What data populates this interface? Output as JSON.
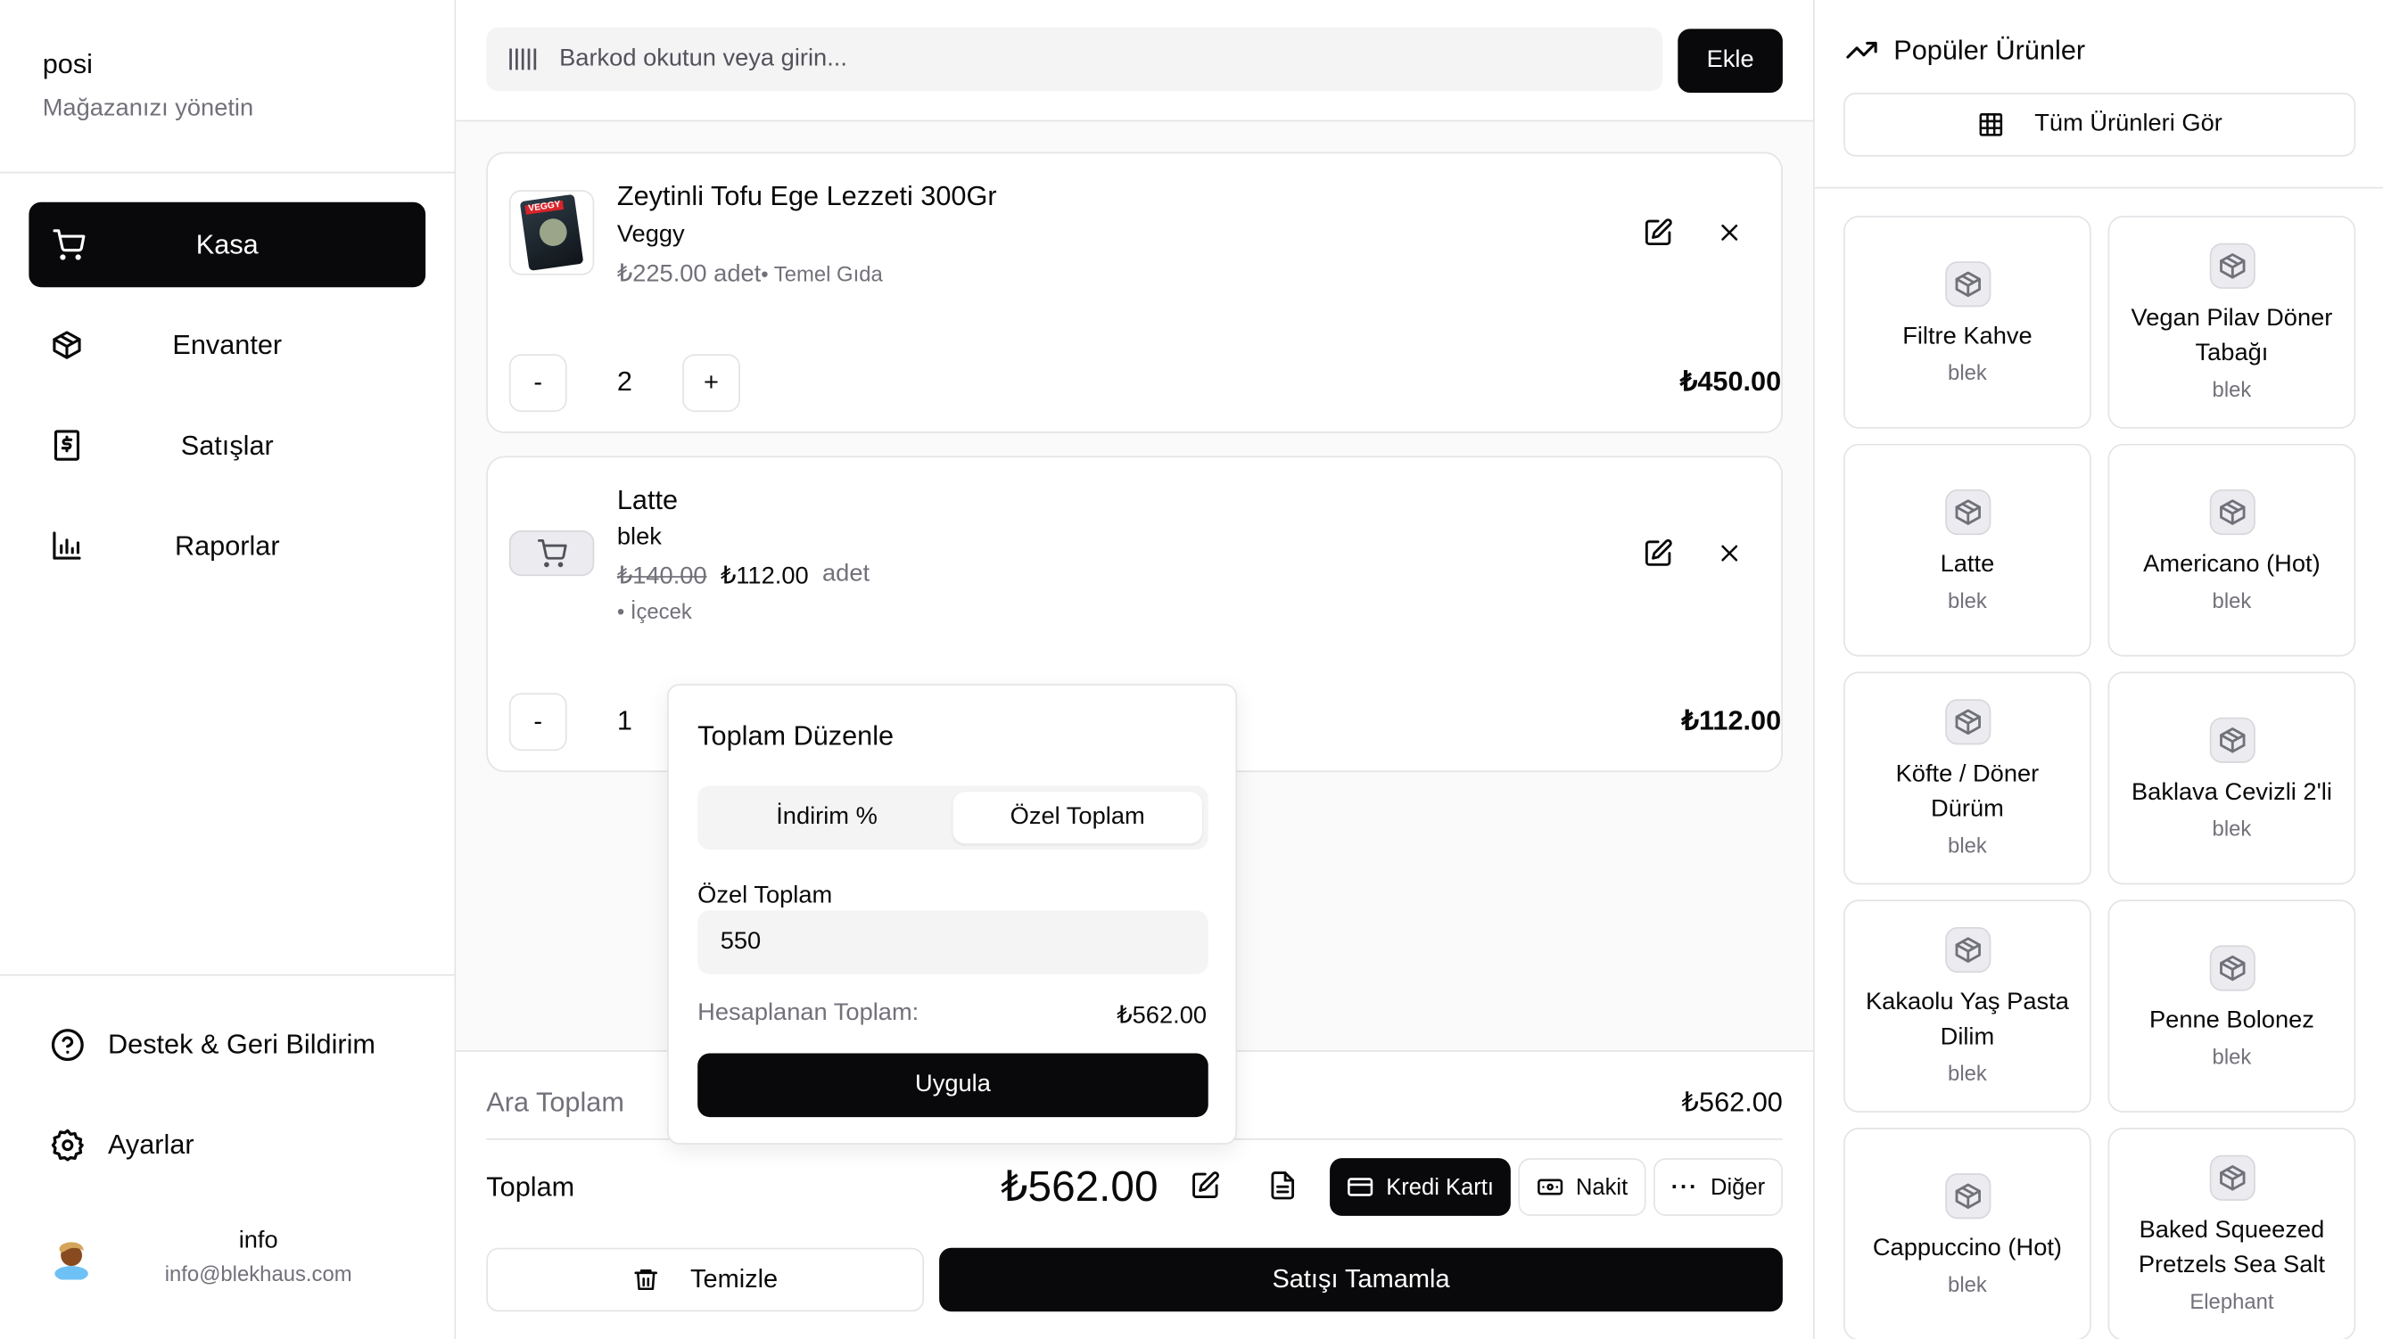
{
  "sidebar": {
    "app_name": "posi",
    "subtitle": "Mağazanızı yönetin",
    "items": [
      {
        "label": "Kasa",
        "icon": "cart-icon",
        "active": true
      },
      {
        "label": "Envanter",
        "icon": "package-icon"
      },
      {
        "label": "Satışlar",
        "icon": "receipt-dollar-icon"
      },
      {
        "label": "Raporlar",
        "icon": "bar-chart-icon"
      }
    ],
    "support": "Destek & Geri Bildirim",
    "settings": "Ayarlar",
    "user": {
      "name": "info",
      "email": "info@blekhaus.com"
    }
  },
  "topbar": {
    "barcode_placeholder": "Barkod okutun veya girin...",
    "add_label": "Ekle"
  },
  "cart": [
    {
      "name": "Zeytinli Tofu Ege Lezzeti 300Gr",
      "brand": "Veggy",
      "price": "₺225.00 adet",
      "category": "• Temel Gıda",
      "qty": "2",
      "total": "₺450.00",
      "image_text": "VEGGY"
    },
    {
      "name": "Latte",
      "brand": "blek",
      "old_price": "₺140.00",
      "price": "₺112.00",
      "unit": "adet",
      "category": "• İçecek",
      "qty": "1",
      "total": "₺112.00"
    }
  ],
  "qty_minus": "-",
  "qty_plus": "+",
  "popover": {
    "title": "Toplam Düzenle",
    "tabs": [
      "İndirim %",
      "Özel Toplam"
    ],
    "active_tab": "Özel Toplam",
    "field_label": "Özel Toplam",
    "field_value": "550",
    "calc_label": "Hesaplanan Toplam:",
    "calc_value": "₺562.00",
    "apply": "Uygula"
  },
  "summary": {
    "subtotal_label": "Ara Toplam",
    "subtotal": "₺562.00",
    "total_label": "Toplam",
    "total": "₺562.00",
    "payment": [
      "Kredi Kartı",
      "Nakit",
      "Diğer"
    ],
    "selected_payment": "Kredi Kartı",
    "clear": "Temizle",
    "complete": "Satışı Tamamla"
  },
  "right": {
    "title": "Popüler Ürünler",
    "view_all": "Tüm Ürünleri Gör",
    "products": [
      {
        "name": "Filtre Kahve",
        "brand": "blek"
      },
      {
        "name": "Vegan Pilav Döner Tabağı",
        "brand": "blek"
      },
      {
        "name": "Latte",
        "brand": "blek"
      },
      {
        "name": "Americano (Hot)",
        "brand": "blek"
      },
      {
        "name": "Köfte / Döner Dürüm",
        "brand": "blek"
      },
      {
        "name": "Baklava Cevizli 2'li",
        "brand": "blek"
      },
      {
        "name": "Kakaolu Yaş Pasta Dilim",
        "brand": "blek"
      },
      {
        "name": "Penne Bolonez",
        "brand": "blek"
      },
      {
        "name": "Cappuccino (Hot)",
        "brand": "blek"
      },
      {
        "name": "Baked Squeezed Pretzels Sea Salt",
        "brand": "Elephant"
      }
    ]
  },
  "colors": {
    "primary": "#09090b",
    "muted": "#71717a",
    "border": "#e4e4e7"
  }
}
